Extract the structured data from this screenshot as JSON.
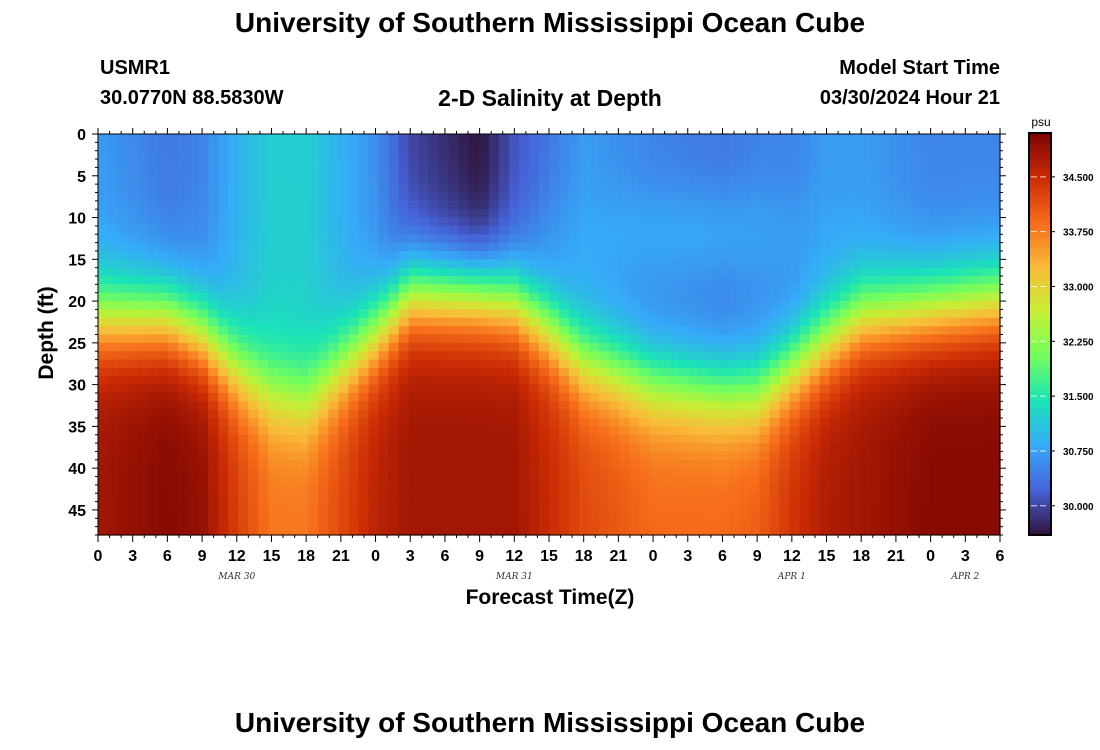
{
  "page": {
    "title": "University of Southern Mississippi Ocean Cube",
    "station_id": "USMR1",
    "coords": "30.0770N  88.5830W",
    "subtitle": "2-D Salinity at Depth",
    "start_label": "Model Start Time",
    "start_value": "03/30/2024 Hour 21",
    "footer_title": "University of Southern Mississippi Ocean Cube"
  },
  "chart_data": {
    "type": "heatmap",
    "xlabel": "Forecast Time(Z)",
    "ylabel": "Depth (ft)",
    "x_tick_labels": [
      "0",
      "3",
      "6",
      "9",
      "12",
      "15",
      "18",
      "21",
      "0",
      "3",
      "6",
      "9",
      "12",
      "15",
      "18",
      "21",
      "0",
      "3",
      "6",
      "9",
      "12",
      "15",
      "18",
      "21",
      "0",
      "3",
      "6"
    ],
    "y_ticks": [
      0,
      5,
      10,
      15,
      20,
      25,
      30,
      35,
      40,
      45
    ],
    "ylim": [
      0,
      48
    ],
    "x_range_hours": [
      0,
      78
    ],
    "day_labels": [
      {
        "label": "MAR 30",
        "hour": 12
      },
      {
        "label": "MAR 31",
        "hour": 36
      },
      {
        "label": "APR 1",
        "hour": 60
      },
      {
        "label": "APR 2",
        "hour": 75
      }
    ],
    "colorbar": {
      "unit": "psu",
      "vmin": 29.6,
      "vmax": 35.1,
      "ticks": [
        "34.500",
        "33.750",
        "33.000",
        "32.250",
        "31.500",
        "30.750",
        "30.000"
      ],
      "palette": [
        "#30123b",
        "#4662d7",
        "#36aaf9",
        "#1ae4b6",
        "#72fe5e",
        "#c7ef34",
        "#fabb39",
        "#f66b19",
        "#ca2a04",
        "#7a0403"
      ]
    },
    "profiles_hours": [
      0,
      6,
      9,
      12,
      15,
      18,
      24,
      27,
      33,
      36,
      39,
      42,
      48,
      54,
      57,
      60,
      63,
      66,
      72,
      78
    ],
    "halocline_depth_ft": [
      22,
      22,
      24,
      28,
      31,
      32,
      24,
      19,
      19,
      20,
      23,
      27,
      30,
      31,
      31,
      28,
      25,
      22,
      21,
      20
    ],
    "surface_salinity_psu": [
      30.7,
      30.4,
      30.5,
      30.9,
      31.2,
      31.2,
      30.6,
      30.0,
      29.6,
      30.1,
      30.4,
      30.7,
      30.5,
      30.4,
      30.5,
      30.5,
      30.7,
      30.7,
      30.5,
      30.5
    ],
    "bottom_salinity_psu": [
      34.8,
      35.0,
      34.9,
      34.3,
      33.8,
      33.8,
      34.6,
      34.8,
      34.8,
      34.8,
      34.5,
      34.2,
      33.9,
      33.9,
      34.0,
      34.4,
      34.7,
      34.8,
      35.0,
      35.0
    ],
    "surface_front": {
      "hour_start": 36,
      "hour_end": 66,
      "depth_ft": 12,
      "salinity_psu": 31.2
    }
  }
}
